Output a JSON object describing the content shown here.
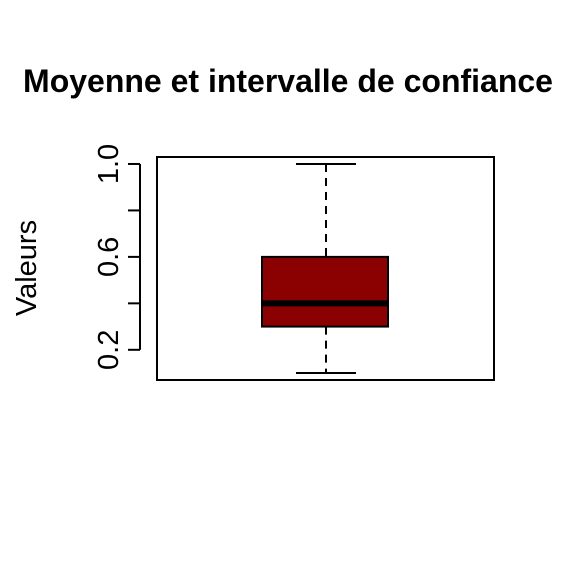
{
  "chart_data": {
    "type": "boxplot",
    "title": "Moyenne et intervalle de confiance",
    "ylabel": "Valeurs",
    "xlabel": "",
    "ylim": [
      0.07,
      1.03
    ],
    "yticks": [
      0.2,
      0.4,
      0.6,
      0.8,
      1.0
    ],
    "ytick_labels": [
      "0.2",
      "",
      "0.6",
      "",
      "1.0"
    ],
    "box": {
      "min": 0.1,
      "q1": 0.3,
      "median": 0.4,
      "q3": 0.6,
      "max": 1.0
    },
    "grid": false,
    "colors": {
      "box_fill": "#8B0000",
      "box_border": "#000000",
      "median": "#000000",
      "whisker": "#000000",
      "frame": "#000000"
    }
  }
}
